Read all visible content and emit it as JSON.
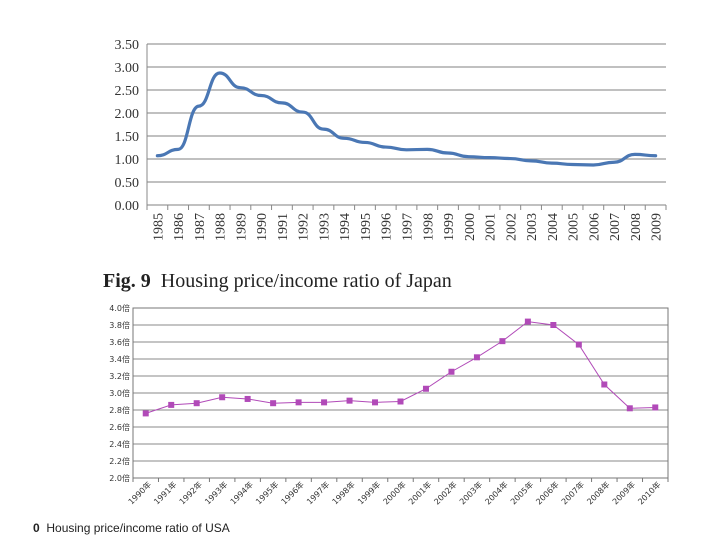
{
  "chart_data": [
    {
      "type": "line",
      "title": "",
      "xlabel": "",
      "ylabel": "",
      "ylim": [
        0,
        3.5
      ],
      "yticks": [
        "0.00",
        "0.50",
        "1.00",
        "1.50",
        "2.00",
        "2.50",
        "3.00",
        "3.50"
      ],
      "x": [
        "1985",
        "1986",
        "1987",
        "1988",
        "1989",
        "1990",
        "1991",
        "1992",
        "1993",
        "1994",
        "1995",
        "1996",
        "1997",
        "1998",
        "1999",
        "2000",
        "2001",
        "2002",
        "2003",
        "2004",
        "2005",
        "2006",
        "2007",
        "2008",
        "2009"
      ],
      "values": [
        1.07,
        1.21,
        2.15,
        2.87,
        2.55,
        2.38,
        2.22,
        2.02,
        1.65,
        1.45,
        1.36,
        1.26,
        1.2,
        1.21,
        1.13,
        1.05,
        1.03,
        1.01,
        0.96,
        0.91,
        0.88,
        0.87,
        0.93,
        1.1,
        1.07
      ],
      "color": "#4a77b4",
      "grid": true
    },
    {
      "type": "line",
      "title": "",
      "xlabel": "",
      "ylabel": "",
      "ylim": [
        2.0,
        4.0
      ],
      "yticks": [
        "2.0倍",
        "2.2倍",
        "2.4倍",
        "2.6倍",
        "2.8倍",
        "3.0倍",
        "3.2倍",
        "3.4倍",
        "3.6倍",
        "3.8倍",
        "4.0倍"
      ],
      "x": [
        "1990年",
        "1991年",
        "1992年",
        "1993年",
        "1994年",
        "1995年",
        "1996年",
        "1997年",
        "1998年",
        "1999年",
        "2000年",
        "2001年",
        "2002年",
        "2003年",
        "2004年",
        "2005年",
        "2006年",
        "2007年",
        "2008年",
        "2009年",
        "2010年"
      ],
      "values": [
        2.76,
        2.86,
        2.88,
        2.95,
        2.93,
        2.88,
        2.89,
        2.89,
        2.91,
        2.89,
        2.9,
        3.05,
        3.25,
        3.42,
        3.61,
        3.84,
        3.8,
        3.57,
        3.1,
        2.82,
        2.83
      ],
      "color": "#b14ab8",
      "grid": true
    }
  ],
  "captions": {
    "fig9_label": "Fig. 9",
    "fig9_text": "Housing price/income ratio of Japan",
    "fig10_label": "0",
    "fig10_text": "Housing price/income ratio of USA"
  }
}
